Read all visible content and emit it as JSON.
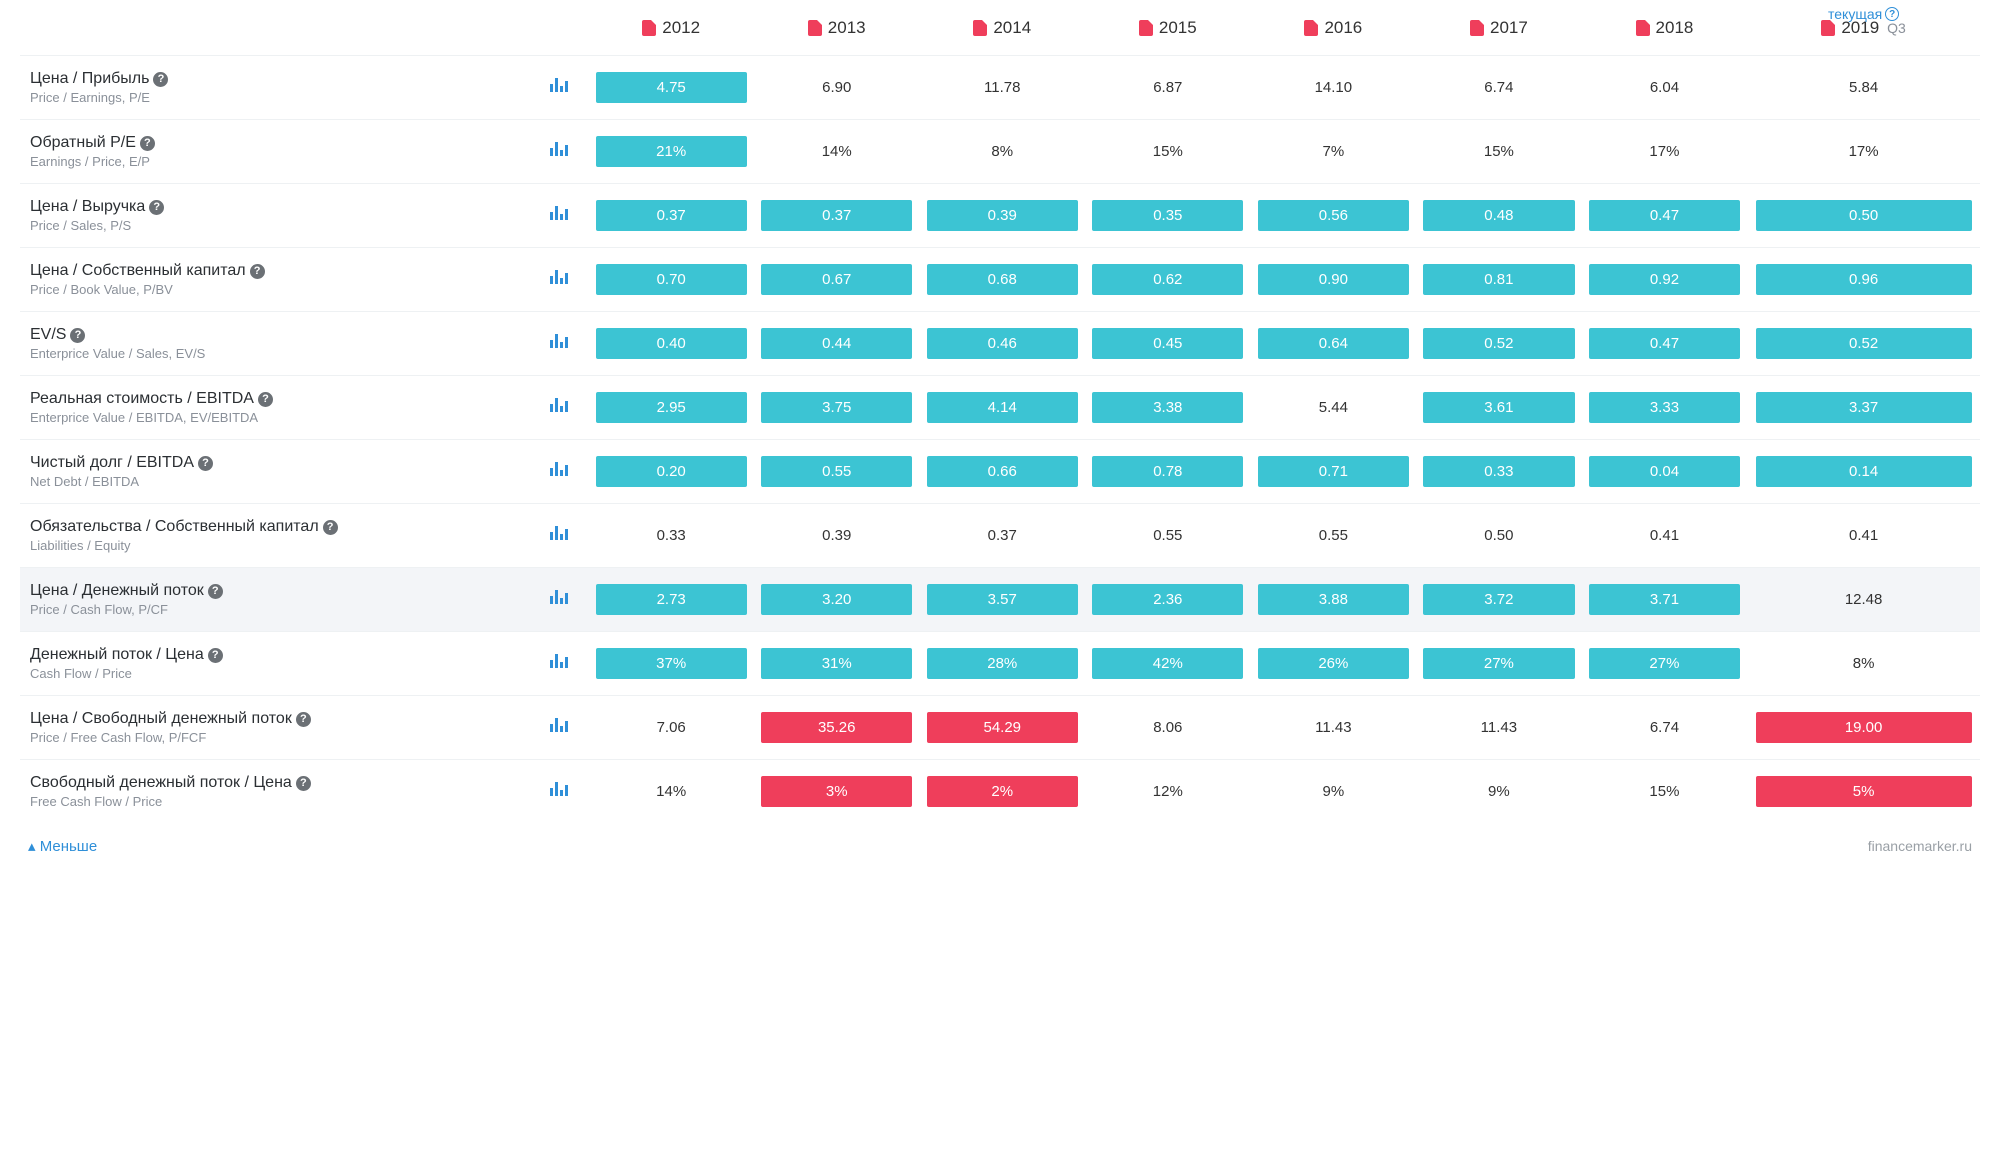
{
  "header": {
    "current_label": "текущая",
    "years": [
      "2012",
      "2013",
      "2014",
      "2015",
      "2016",
      "2017",
      "2018",
      "2019"
    ],
    "quarter_suffix": "Q3"
  },
  "colors": {
    "teal": "#3cc4d3",
    "red": "#ef3e5b",
    "link": "#2f8fd8",
    "muted": "#8a9099",
    "text": "#2b2f33"
  },
  "metrics": [
    {
      "title": "Цена / Прибыль",
      "subtitle": "Price / Earnings, P/E",
      "values": [
        "4.75",
        "6.90",
        "11.78",
        "6.87",
        "14.10",
        "6.74",
        "6.04",
        "5.84"
      ],
      "styles": [
        "teal",
        "",
        "",
        "",
        "",
        "",
        "",
        ""
      ]
    },
    {
      "title": "Обратный P/E",
      "subtitle": "Earnings / Price, E/P",
      "values": [
        "21%",
        "14%",
        "8%",
        "15%",
        "7%",
        "15%",
        "17%",
        "17%"
      ],
      "styles": [
        "teal",
        "",
        "",
        "",
        "",
        "",
        "",
        ""
      ]
    },
    {
      "title": "Цена / Выручка",
      "subtitle": "Price / Sales, P/S",
      "values": [
        "0.37",
        "0.37",
        "0.39",
        "0.35",
        "0.56",
        "0.48",
        "0.47",
        "0.50"
      ],
      "styles": [
        "teal",
        "teal",
        "teal",
        "teal",
        "teal",
        "teal",
        "teal",
        "teal"
      ]
    },
    {
      "title": "Цена / Собственный капитал",
      "subtitle": "Price / Book Value, P/BV",
      "values": [
        "0.70",
        "0.67",
        "0.68",
        "0.62",
        "0.90",
        "0.81",
        "0.92",
        "0.96"
      ],
      "styles": [
        "teal",
        "teal",
        "teal",
        "teal",
        "teal",
        "teal",
        "teal",
        "teal"
      ]
    },
    {
      "title": "EV/S",
      "subtitle": "Enterprice Value / Sales, EV/S",
      "values": [
        "0.40",
        "0.44",
        "0.46",
        "0.45",
        "0.64",
        "0.52",
        "0.47",
        "0.52"
      ],
      "styles": [
        "teal",
        "teal",
        "teal",
        "teal",
        "teal",
        "teal",
        "teal",
        "teal"
      ]
    },
    {
      "title": "Реальная стоимость / EBITDA",
      "subtitle": "Enterprice Value / EBITDA, EV/EBITDA",
      "values": [
        "2.95",
        "3.75",
        "4.14",
        "3.38",
        "5.44",
        "3.61",
        "3.33",
        "3.37"
      ],
      "styles": [
        "teal",
        "teal",
        "teal",
        "teal",
        "",
        "teal",
        "teal",
        "teal"
      ]
    },
    {
      "title": "Чистый долг / EBITDA",
      "subtitle": "Net Debt / EBITDA",
      "values": [
        "0.20",
        "0.55",
        "0.66",
        "0.78",
        "0.71",
        "0.33",
        "0.04",
        "0.14"
      ],
      "styles": [
        "teal",
        "teal",
        "teal",
        "teal",
        "teal",
        "teal",
        "teal",
        "teal"
      ]
    },
    {
      "title": "Обязательства / Собственный капитал",
      "subtitle": "Liabilities / Equity",
      "values": [
        "0.33",
        "0.39",
        "0.37",
        "0.55",
        "0.55",
        "0.50",
        "0.41",
        "0.41"
      ],
      "styles": [
        "",
        "",
        "",
        "",
        "",
        "",
        "",
        ""
      ]
    },
    {
      "title": "Цена / Денежный поток",
      "subtitle": "Price / Cash Flow, P/CF",
      "highlighted": true,
      "values": [
        "2.73",
        "3.20",
        "3.57",
        "2.36",
        "3.88",
        "3.72",
        "3.71",
        "12.48"
      ],
      "styles": [
        "teal",
        "teal",
        "teal",
        "teal",
        "teal",
        "teal",
        "teal",
        ""
      ]
    },
    {
      "title": "Денежный поток / Цена",
      "subtitle": "Cash Flow / Price",
      "values": [
        "37%",
        "31%",
        "28%",
        "42%",
        "26%",
        "27%",
        "27%",
        "8%"
      ],
      "styles": [
        "teal",
        "teal",
        "teal",
        "teal",
        "teal",
        "teal",
        "teal",
        ""
      ]
    },
    {
      "title": "Цена / Свободный денежный поток",
      "subtitle": "Price / Free Cash Flow, P/FCF",
      "values": [
        "7.06",
        "35.26",
        "54.29",
        "8.06",
        "11.43",
        "11.43",
        "6.74",
        "19.00"
      ],
      "styles": [
        "",
        "red",
        "red",
        "",
        "",
        "",
        "",
        "red"
      ]
    },
    {
      "title": "Свободный денежный поток / Цена",
      "subtitle": "Free Cash Flow / Price",
      "values": [
        "14%",
        "3%",
        "2%",
        "12%",
        "9%",
        "9%",
        "15%",
        "5%"
      ],
      "styles": [
        "",
        "red",
        "red",
        "",
        "",
        "",
        "",
        "red"
      ]
    }
  ],
  "footer": {
    "less_label": "Меньше",
    "brand": "financemarker.ru"
  }
}
